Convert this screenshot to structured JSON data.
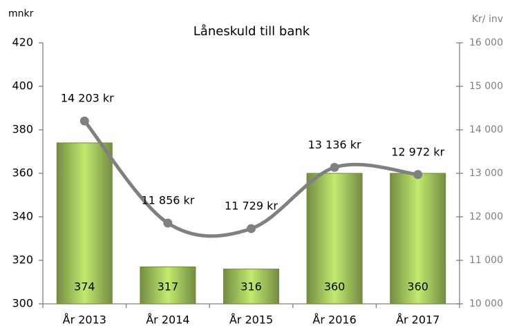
{
  "chart_data": {
    "type": "bar",
    "title": "Låneskuld till bank",
    "y_label": "mnkr",
    "y2_label": "Kr/ inv",
    "categories": [
      "År 2013",
      "År 2014",
      "År 2015",
      "År 2016",
      "År 2017"
    ],
    "series": [
      {
        "name": "Låneskuld",
        "type": "bar",
        "color": "#9bbb59",
        "values": [
          374,
          317,
          316,
          360,
          360
        ]
      },
      {
        "name": "Kr/ inv",
        "type": "line",
        "axis": "y2",
        "color": "#808080",
        "values": [
          14203,
          11856,
          11729,
          13136,
          12972
        ],
        "value_labels": [
          "14 203 kr",
          "11 856 kr",
          "11 729 kr",
          "13 136 kr",
          "12 972 kr"
        ]
      }
    ],
    "ylim": [
      300,
      420
    ],
    "yticks": [
      300,
      320,
      340,
      360,
      380,
      400,
      420
    ],
    "y2lim": [
      10000,
      16000
    ],
    "y2ticks": [
      {
        "value": 10000,
        "label": "10 000"
      },
      {
        "value": 11000,
        "label": "11 000"
      },
      {
        "value": 12000,
        "label": "12 000"
      },
      {
        "value": 13000,
        "label": "13 000"
      },
      {
        "value": 14000,
        "label": "14 000"
      },
      {
        "value": 15000,
        "label": "15 000"
      },
      {
        "value": 16000,
        "label": "16 000"
      }
    ]
  }
}
